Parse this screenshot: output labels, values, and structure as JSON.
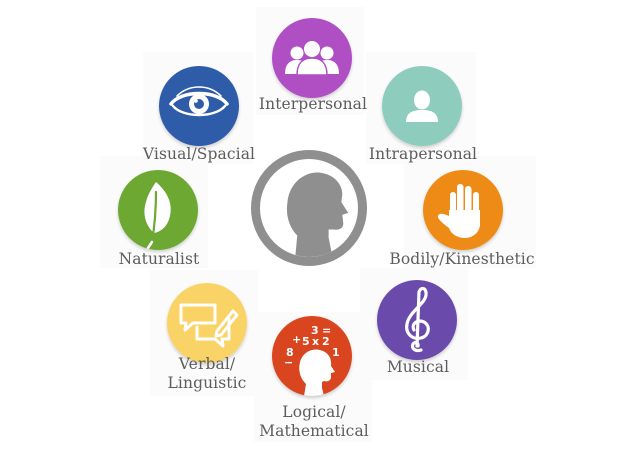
{
  "diagram": {
    "center": {
      "icon": "human-head-profile-icon"
    },
    "intelligences": [
      {
        "id": "interpersonal",
        "label": "Interpersonal",
        "color": "#b04fc4",
        "icon": "group-of-people-icon"
      },
      {
        "id": "intrapersonal",
        "label": "Intrapersonal",
        "color": "#8ecdbd",
        "icon": "single-person-icon"
      },
      {
        "id": "bodily",
        "label": "Bodily/Kinesthetic",
        "color": "#ee8a16",
        "icon": "raised-hand-icon"
      },
      {
        "id": "musical",
        "label": "Musical",
        "color": "#6a4bab",
        "icon": "treble-clef-icon"
      },
      {
        "id": "logical",
        "label_lines": [
          "Logical/",
          "Mathematical"
        ],
        "color": "#d8451f",
        "icon": "head-with-numbers-icon",
        "symbols": [
          "3",
          "=",
          "+",
          "5",
          "x",
          "2",
          "8",
          "1",
          "−"
        ]
      },
      {
        "id": "verbal",
        "label_lines": [
          "Verbal/",
          "Linguistic"
        ],
        "color": "#fad366",
        "icon": "speech-bubbles-pencil-icon"
      },
      {
        "id": "naturalist",
        "label": "Naturalist",
        "color": "#6ca832",
        "icon": "leaf-icon"
      },
      {
        "id": "visual",
        "label": "Visual/Spacial",
        "color": "#2e5ca8",
        "icon": "eye-icon"
      }
    ]
  }
}
